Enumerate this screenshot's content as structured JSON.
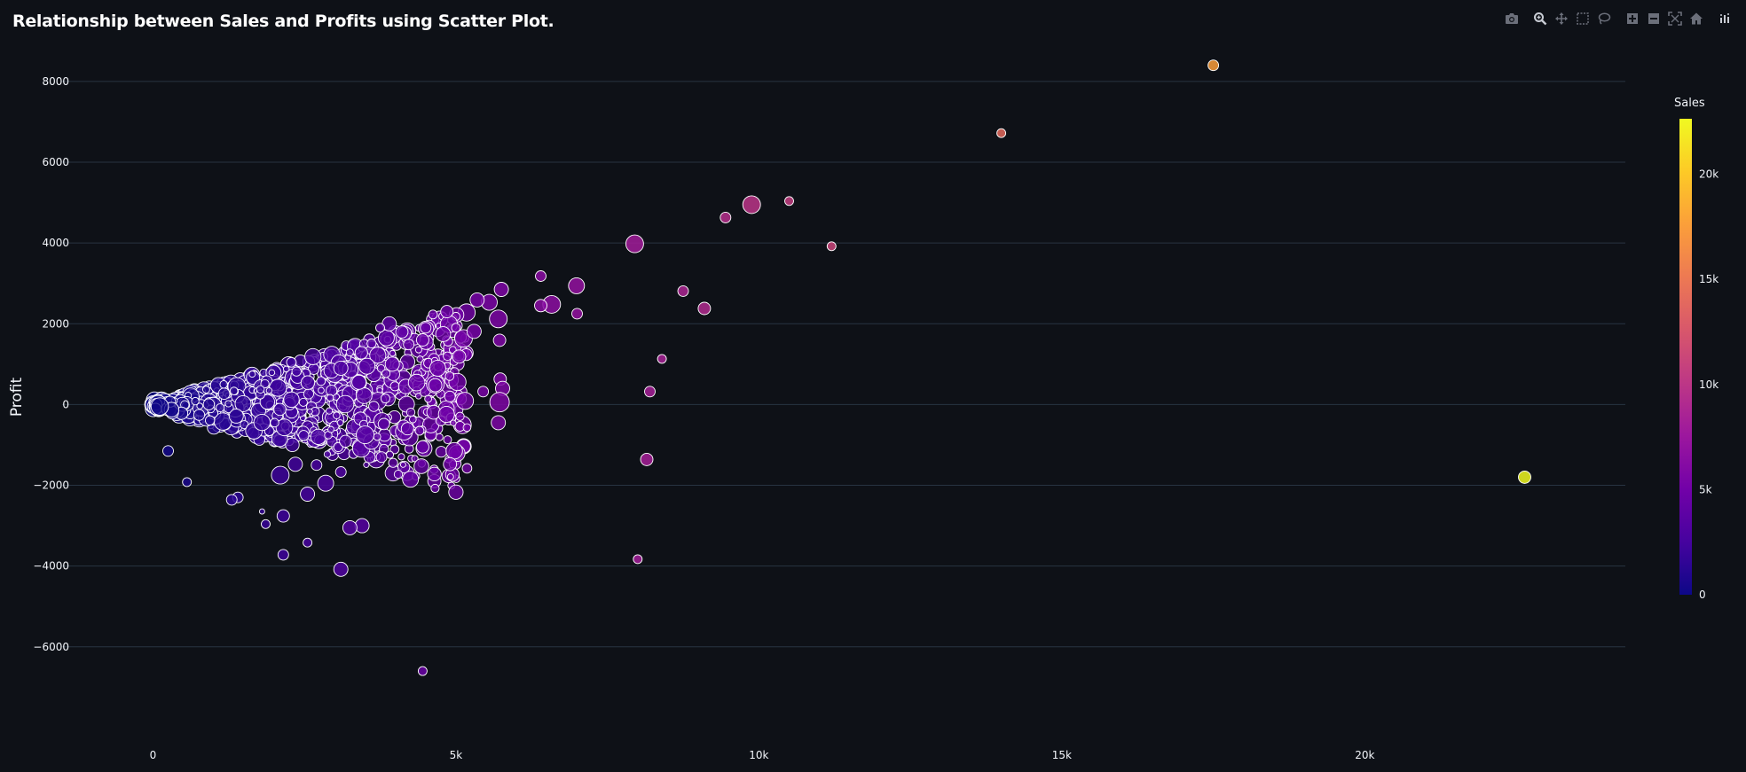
{
  "title": "Relationship between Sales and Profits using Scatter Plot.",
  "modebar": [
    {
      "name": "camera-icon",
      "label": "Download plot as a png"
    },
    {
      "name": "zoom-icon",
      "label": "Zoom"
    },
    {
      "name": "pan-icon",
      "label": "Pan"
    },
    {
      "name": "box-select-icon",
      "label": "Box Select"
    },
    {
      "name": "lasso-select-icon",
      "label": "Lasso Select"
    },
    {
      "name": "zoom-in-icon",
      "label": "Zoom in"
    },
    {
      "name": "zoom-out-icon",
      "label": "Zoom out"
    },
    {
      "name": "autoscale-icon",
      "label": "Autoscale"
    },
    {
      "name": "reset-axes-icon",
      "label": "Reset axes"
    },
    {
      "name": "plotly-logo-icon",
      "label": "Produced with Plotly"
    }
  ],
  "colors": {
    "background": "#0e1117",
    "grid": "#283442",
    "text": "#f2f5fa",
    "marker_outline": "#ffffff",
    "colorscale": [
      "#0d0887",
      "#46039f",
      "#7201a8",
      "#9c179e",
      "#bd3786",
      "#d8576b",
      "#ed7953",
      "#fb9f3a",
      "#fdca26",
      "#f0f921"
    ]
  },
  "chart_data": {
    "type": "scatter",
    "title": "Relationship between Sales and Profits using Scatter Plot.",
    "xlabel": "",
    "ylabel": "Profit",
    "xlim": [
      -1500,
      24300
    ],
    "ylim": [
      -8200,
      8700
    ],
    "x_ticks": [
      0,
      5000,
      10000,
      15000,
      20000
    ],
    "x_tick_labels": [
      "0",
      "5k",
      "10k",
      "15k",
      "20k"
    ],
    "y_ticks": [
      -6000,
      -4000,
      -2000,
      0,
      2000,
      4000,
      6000,
      8000
    ],
    "y_tick_labels": [
      "−6000",
      "−4000",
      "−2000",
      "0",
      "2000",
      "4000",
      "6000",
      "8000"
    ],
    "grid": true,
    "color_by": "Sales",
    "colorbar": {
      "title": "Sales",
      "range": [
        0,
        22638
      ],
      "ticks": [
        0,
        5000,
        10000,
        15000,
        20000
      ],
      "tick_labels": [
        "0",
        "5k",
        "10k",
        "15k",
        "20k"
      ],
      "placement": "right"
    },
    "size_note": "marker size varies by a third field; dense cluster of many points near origin",
    "points": [
      {
        "x": 17500,
        "y": 8400,
        "s": 6
      },
      {
        "x": 14000,
        "y": 6720,
        "s": 5
      },
      {
        "x": 22638,
        "y": -1800,
        "s": 7
      },
      {
        "x": 10500,
        "y": 5040,
        "s": 5
      },
      {
        "x": 9880,
        "y": 4950,
        "s": 10
      },
      {
        "x": 9450,
        "y": 4630,
        "s": 6
      },
      {
        "x": 11200,
        "y": 3920,
        "s": 5
      },
      {
        "x": 7950,
        "y": 3980,
        "s": 10
      },
      {
        "x": 6400,
        "y": 3180,
        "s": 6
      },
      {
        "x": 6990,
        "y": 2940,
        "s": 9
      },
      {
        "x": 6580,
        "y": 2480,
        "s": 10
      },
      {
        "x": 6400,
        "y": 2450,
        "s": 7
      },
      {
        "x": 8750,
        "y": 2810,
        "s": 6
      },
      {
        "x": 9100,
        "y": 2380,
        "s": 7
      },
      {
        "x": 7000,
        "y": 2250,
        "s": 6
      },
      {
        "x": 8400,
        "y": 1130,
        "s": 5
      },
      {
        "x": 8200,
        "y": 320,
        "s": 6
      },
      {
        "x": 8150,
        "y": -1360,
        "s": 7
      },
      {
        "x": 8000,
        "y": -3830,
        "s": 5
      },
      {
        "x": 5750,
        "y": 2850,
        "s": 8
      },
      {
        "x": 5550,
        "y": 2530,
        "s": 9
      },
      {
        "x": 5350,
        "y": 2590,
        "s": 8
      },
      {
        "x": 5700,
        "y": 2120,
        "s": 10
      },
      {
        "x": 5720,
        "y": 1590,
        "s": 7
      },
      {
        "x": 5730,
        "y": 630,
        "s": 7
      },
      {
        "x": 5770,
        "y": 400,
        "s": 8
      },
      {
        "x": 5720,
        "y": 60,
        "s": 11
      },
      {
        "x": 5700,
        "y": -450,
        "s": 8
      },
      {
        "x": 5450,
        "y": 320,
        "s": 6
      },
      {
        "x": 5300,
        "y": 1810,
        "s": 8
      },
      {
        "x": 5000,
        "y": 1900,
        "s": 5
      },
      {
        "x": 4850,
        "y": 2300,
        "s": 7
      },
      {
        "x": 4620,
        "y": 2230,
        "s": 5
      },
      {
        "x": 4500,
        "y": 1900,
        "s": 6
      },
      {
        "x": 4450,
        "y": 1600,
        "s": 7
      },
      {
        "x": 4700,
        "y": 900,
        "s": 9
      },
      {
        "x": 4900,
        "y": 200,
        "s": 6
      },
      {
        "x": 4450,
        "y": -1050,
        "s": 7
      },
      {
        "x": 4400,
        "y": -650,
        "s": 5
      },
      {
        "x": 4200,
        "y": -600,
        "s": 7
      },
      {
        "x": 4250,
        "y": -1850,
        "s": 9
      },
      {
        "x": 4450,
        "y": -6600,
        "s": 5
      },
      {
        "x": 3100,
        "y": -4080,
        "s": 8
      },
      {
        "x": 3450,
        "y": -3000,
        "s": 8
      },
      {
        "x": 3250,
        "y": -3050,
        "s": 8
      },
      {
        "x": 2550,
        "y": -3420,
        "s": 5
      },
      {
        "x": 2150,
        "y": -3720,
        "s": 6
      },
      {
        "x": 2150,
        "y": -2760,
        "s": 7
      },
      {
        "x": 1860,
        "y": -2960,
        "s": 5
      },
      {
        "x": 1800,
        "y": -2650,
        "s": 3
      },
      {
        "x": 1400,
        "y": -2300,
        "s": 6
      },
      {
        "x": 1300,
        "y": -2360,
        "s": 6
      },
      {
        "x": 2550,
        "y": -2220,
        "s": 8
      },
      {
        "x": 2850,
        "y": -1950,
        "s": 9
      },
      {
        "x": 3100,
        "y": -1670,
        "s": 6
      },
      {
        "x": 2700,
        "y": -1500,
        "s": 6
      },
      {
        "x": 2350,
        "y": -1480,
        "s": 8
      },
      {
        "x": 2100,
        "y": -1750,
        "s": 10
      },
      {
        "x": 560,
        "y": -1920,
        "s": 5
      },
      {
        "x": 250,
        "y": -1150,
        "s": 6
      },
      {
        "x": 3700,
        "y": -800,
        "s": 4
      },
      {
        "x": 3500,
        "y": -750,
        "s": 10
      },
      {
        "x": 3850,
        "y": 1650,
        "s": 9
      },
      {
        "x": 3900,
        "y": 2000,
        "s": 8
      },
      {
        "x": 3750,
        "y": 1900,
        "s": 5
      },
      {
        "x": 3950,
        "y": 1000,
        "s": 8
      },
      {
        "x": 3400,
        "y": 550,
        "s": 8
      },
      {
        "x": 3100,
        "y": 900,
        "s": 8
      }
    ]
  }
}
